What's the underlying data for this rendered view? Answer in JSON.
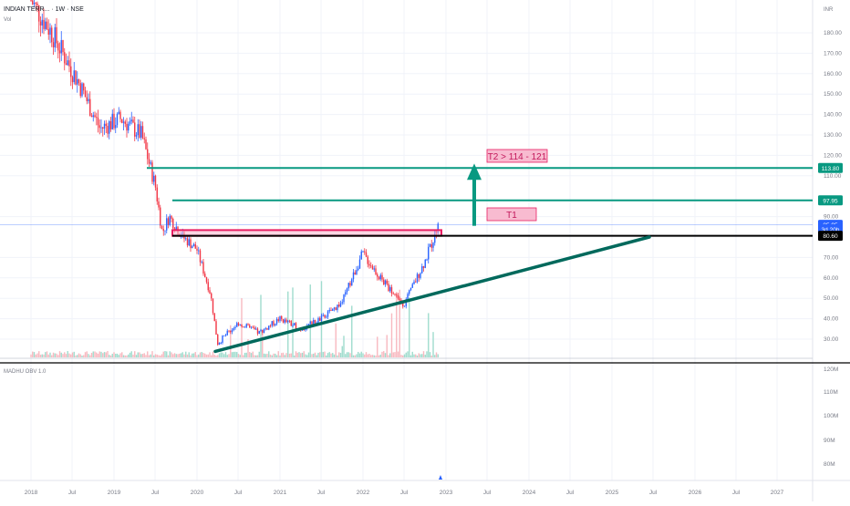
{
  "header": {
    "title": "INDIAN TERR... · 1W · NSE",
    "subtitle": "Vol"
  },
  "indicator": {
    "label": "MADHU OBV 1.0"
  },
  "price_axis": {
    "currency": "INR",
    "ticks": [
      "180.00",
      "170.00",
      "160.00",
      "150.00",
      "140.00",
      "130.00",
      "120.00",
      "110.00",
      "90.00",
      "70.00",
      "60.00",
      "50.00",
      "40.00",
      "30.00"
    ]
  },
  "obv_axis": {
    "ticks": [
      "120M",
      "110M",
      "100M",
      "90M",
      "80M"
    ]
  },
  "time_axis": {
    "ticks": [
      "2018",
      "Jul",
      "2019",
      "Jul",
      "2020",
      "Jul",
      "2021",
      "Jul",
      "2022",
      "Jul",
      "2023",
      "Jul",
      "2024",
      "Jul",
      "2025",
      "Jul",
      "2026",
      "Jul",
      "2027"
    ]
  },
  "price_tags": [
    {
      "label": "113.80",
      "value": 113.8,
      "color": "#089981"
    },
    {
      "label": "97.95",
      "value": 97.95,
      "color": "#089981"
    },
    {
      "label": "85.95",
      "value": 85.95,
      "color": "#2962ff"
    },
    {
      "label": "3d 20h",
      "value": 83.8,
      "color": "#2962ff"
    },
    {
      "label": "80.60",
      "value": 80.6,
      "color": "#000000"
    }
  ],
  "annotations": {
    "t1": "T1",
    "t2": "T2 > 114 - 121"
  },
  "colors": {
    "up": "#2962ff",
    "down": "#f23645",
    "teal": "#089981",
    "trend": "#00695c",
    "zone": "#e91e63",
    "box": "#f8bbd0"
  },
  "chart_data": {
    "type": "candlestick",
    "title": "INDIAN TERR... · 1W · NSE",
    "y_unit": "INR",
    "ylim": [
      22,
      196
    ],
    "x_range": [
      "2017-12",
      "2027-12"
    ],
    "levels": [
      {
        "name": "T2 line",
        "value": 113.8
      },
      {
        "name": "T1 line",
        "value": 97.95
      },
      {
        "name": "support",
        "value": 80.6
      },
      {
        "name": "last price",
        "value": 85.95
      }
    ],
    "resistance_zone": [
      80.6,
      83.4
    ],
    "trendline": [
      {
        "x": "2020-04",
        "y": 24
      },
      {
        "x": "2025-07",
        "y": 80
      }
    ],
    "close_path": [
      {
        "x": "2018-01",
        "y": 196
      },
      {
        "x": "2018-04",
        "y": 180
      },
      {
        "x": "2018-08",
        "y": 155
      },
      {
        "x": "2018-11",
        "y": 133
      },
      {
        "x": "2019-02",
        "y": 138
      },
      {
        "x": "2019-05",
        "y": 130
      },
      {
        "x": "2019-07",
        "y": 105
      },
      {
        "x": "2019-08",
        "y": 82
      },
      {
        "x": "2019-09",
        "y": 90
      },
      {
        "x": "2019-11",
        "y": 80
      },
      {
        "x": "2020-01",
        "y": 74
      },
      {
        "x": "2020-03",
        "y": 52
      },
      {
        "x": "2020-04",
        "y": 28
      },
      {
        "x": "2020-07",
        "y": 38
      },
      {
        "x": "2020-10",
        "y": 33
      },
      {
        "x": "2021-01",
        "y": 40
      },
      {
        "x": "2021-04",
        "y": 35
      },
      {
        "x": "2021-07",
        "y": 40
      },
      {
        "x": "2021-10",
        "y": 48
      },
      {
        "x": "2022-01",
        "y": 72
      },
      {
        "x": "2022-04",
        "y": 58
      },
      {
        "x": "2022-07",
        "y": 47
      },
      {
        "x": "2022-10",
        "y": 68
      },
      {
        "x": "2022-12",
        "y": 85.95
      }
    ],
    "volume_level": "low"
  }
}
